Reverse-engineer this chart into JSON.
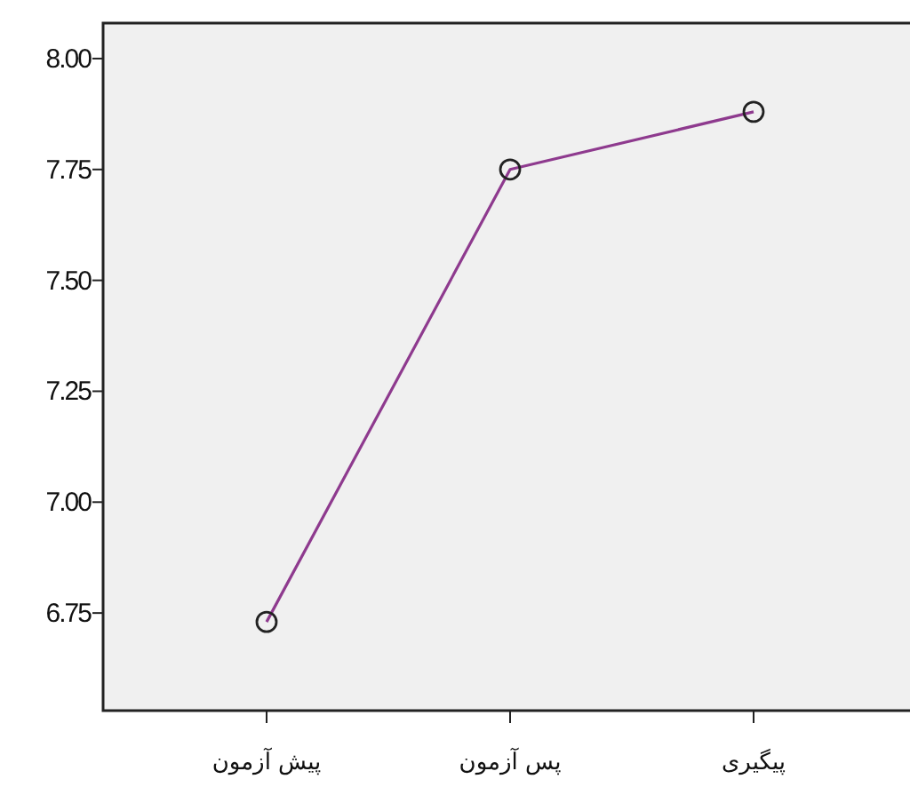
{
  "chart_data": {
    "type": "line",
    "categories": [
      "پیش آزمون",
      "پس آزمون",
      "پیگیری"
    ],
    "series": [
      {
        "color": "#8e3a8e",
        "values": [
          6.73,
          7.75,
          7.88
        ]
      }
    ],
    "ylim": [
      6.53,
      8.08
    ],
    "yticks": [
      {
        "value": 6.75,
        "label": "6.75"
      },
      {
        "value": 7.0,
        "label": "7.00"
      },
      {
        "value": 7.25,
        "label": "7.25"
      },
      {
        "value": 7.5,
        "label": "7.50"
      },
      {
        "value": 7.75,
        "label": "7.75"
      },
      {
        "value": 8.0,
        "label": "8.00"
      }
    ],
    "marker": "circle",
    "grid": false
  }
}
